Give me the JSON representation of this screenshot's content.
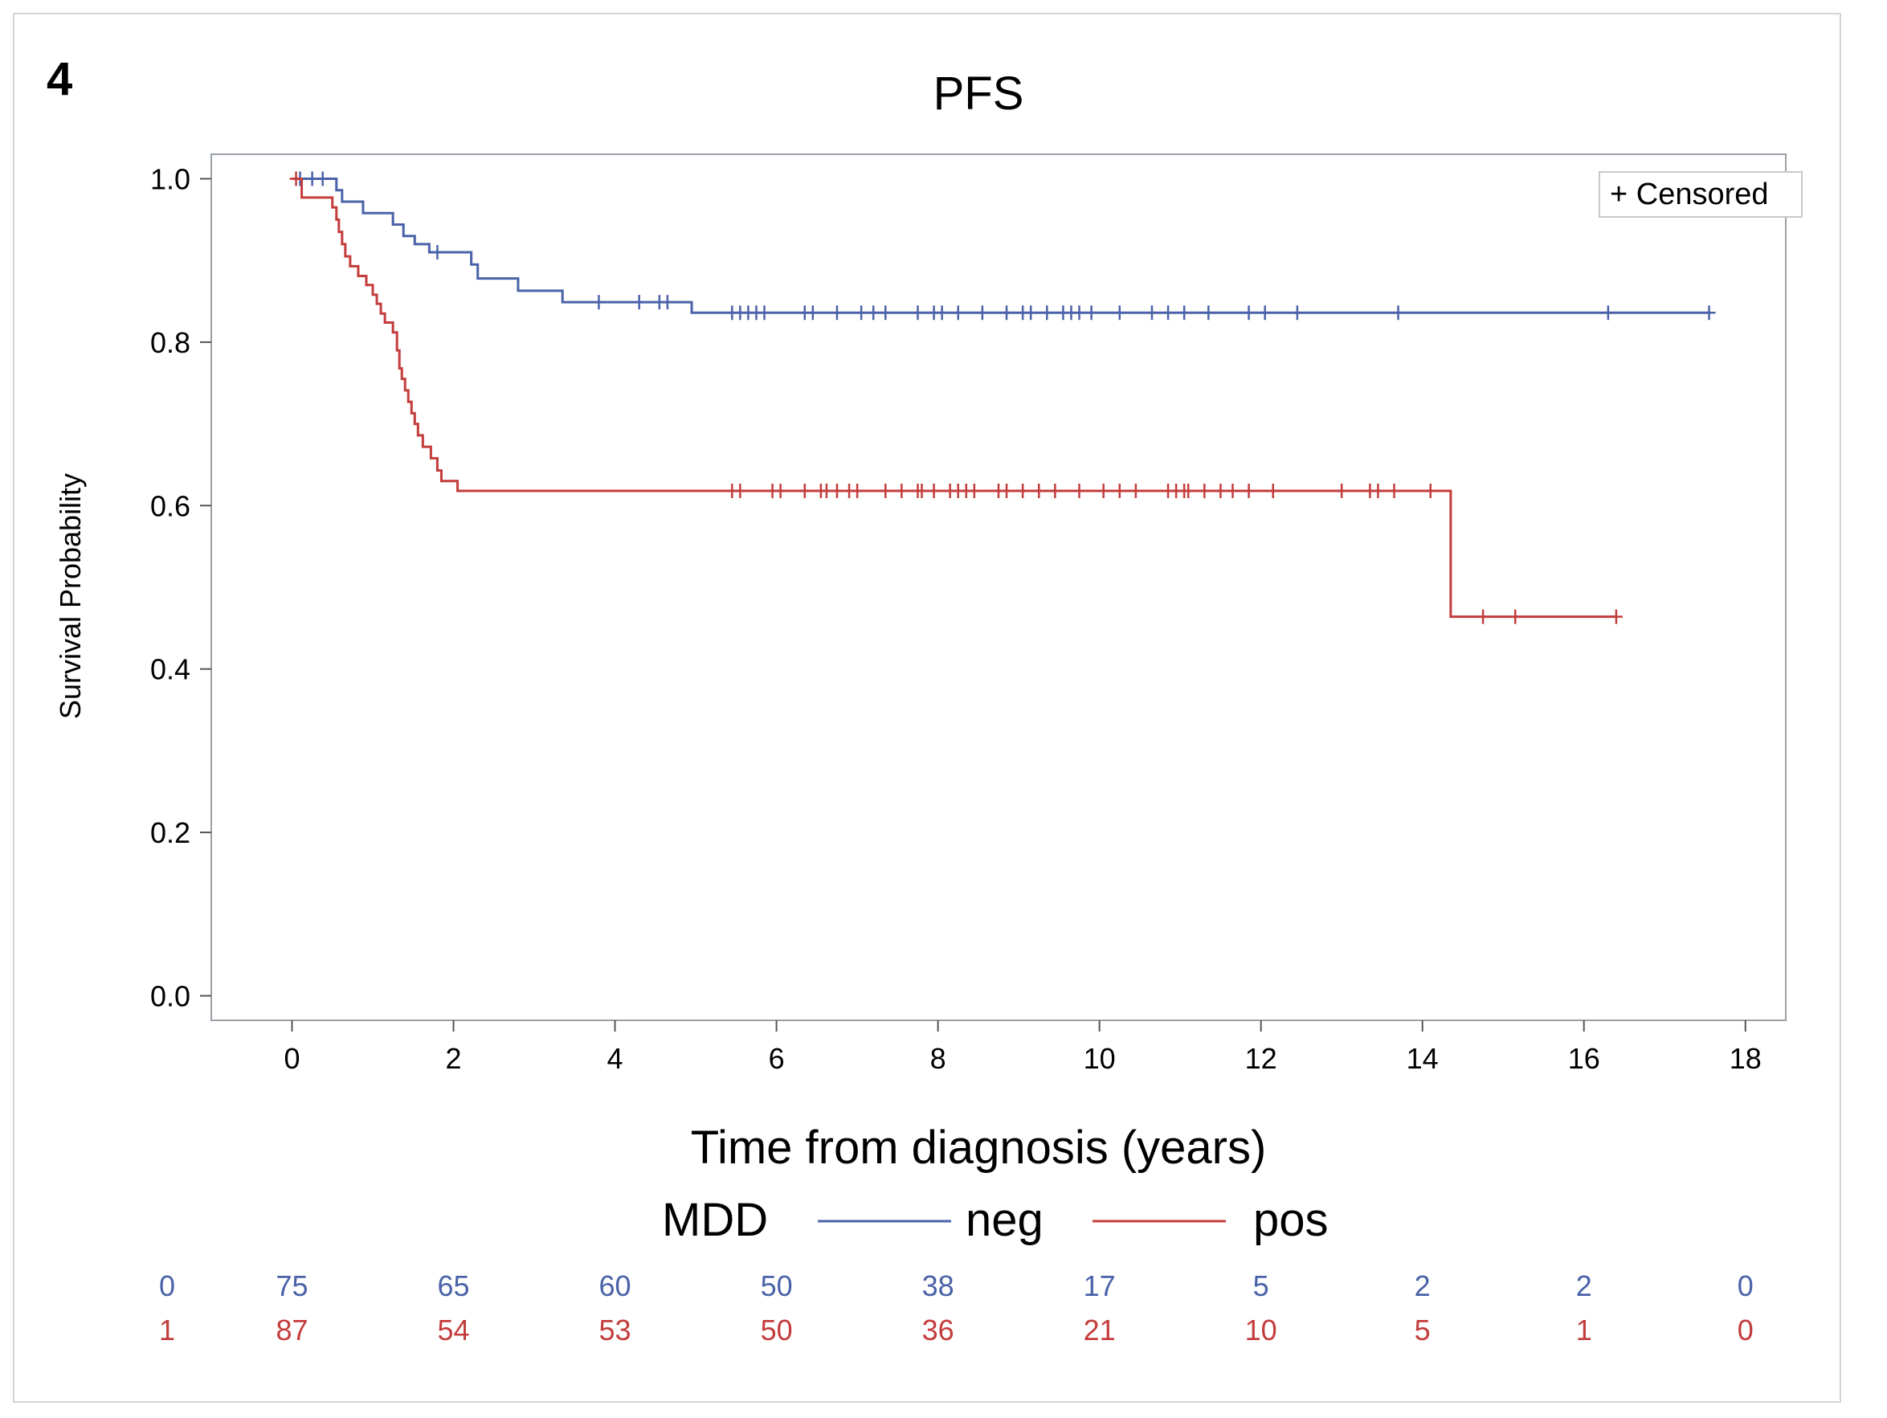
{
  "panel_label": "4",
  "chart_data": {
    "type": "line",
    "subtype": "kaplan-meier",
    "title": "PFS",
    "xlabel": "Time from diagnosis (years)",
    "ylabel": "Survival Probability",
    "xlim": [
      -1,
      18.5
    ],
    "ylim": [
      -0.03,
      1.03
    ],
    "xticks": [
      0,
      2,
      4,
      6,
      8,
      10,
      12,
      14,
      16,
      18
    ],
    "yticks": [
      0.0,
      0.2,
      0.4,
      0.6,
      0.8,
      1.0
    ],
    "xtick_labels": [
      "0",
      "2",
      "4",
      "6",
      "8",
      "10",
      "12",
      "14",
      "16",
      "18"
    ],
    "ytick_labels": [
      "0.0",
      "0.2",
      "0.4",
      "0.6",
      "0.8",
      "1.0"
    ],
    "grid": false,
    "inset_legend": {
      "text": "+ Censored",
      "position": "top-right"
    },
    "legend": {
      "title": "MDD",
      "position": "bottom"
    },
    "series": [
      {
        "name": "neg",
        "color": "#4a62a8",
        "steps": [
          [
            0,
            1.0
          ],
          [
            0.55,
            0.986
          ],
          [
            0.62,
            0.972
          ],
          [
            0.88,
            0.958
          ],
          [
            1.25,
            0.944
          ],
          [
            1.38,
            0.93
          ],
          [
            1.52,
            0.92
          ],
          [
            1.7,
            0.91
          ],
          [
            2.22,
            0.895
          ],
          [
            2.3,
            0.878
          ],
          [
            2.8,
            0.863
          ],
          [
            3.35,
            0.849
          ],
          [
            4.95,
            0.836
          ],
          [
            17.55,
            0.836
          ]
        ],
        "censored": [
          [
            0.1,
            1.0
          ],
          [
            0.25,
            1.0
          ],
          [
            0.38,
            1.0
          ],
          [
            1.8,
            0.91
          ],
          [
            3.8,
            0.849
          ],
          [
            4.3,
            0.849
          ],
          [
            4.55,
            0.849
          ],
          [
            4.65,
            0.849
          ],
          [
            5.45,
            0.836
          ],
          [
            5.55,
            0.836
          ],
          [
            5.65,
            0.836
          ],
          [
            5.75,
            0.836
          ],
          [
            5.85,
            0.836
          ],
          [
            6.35,
            0.836
          ],
          [
            6.45,
            0.836
          ],
          [
            6.75,
            0.836
          ],
          [
            7.05,
            0.836
          ],
          [
            7.2,
            0.836
          ],
          [
            7.35,
            0.836
          ],
          [
            7.75,
            0.836
          ],
          [
            7.95,
            0.836
          ],
          [
            8.05,
            0.836
          ],
          [
            8.25,
            0.836
          ],
          [
            8.55,
            0.836
          ],
          [
            8.85,
            0.836
          ],
          [
            9.05,
            0.836
          ],
          [
            9.15,
            0.836
          ],
          [
            9.35,
            0.836
          ],
          [
            9.55,
            0.836
          ],
          [
            9.65,
            0.836
          ],
          [
            9.75,
            0.836
          ],
          [
            9.9,
            0.836
          ],
          [
            10.25,
            0.836
          ],
          [
            10.65,
            0.836
          ],
          [
            10.85,
            0.836
          ],
          [
            11.05,
            0.836
          ],
          [
            11.35,
            0.836
          ],
          [
            11.85,
            0.836
          ],
          [
            12.05,
            0.836
          ],
          [
            12.45,
            0.836
          ],
          [
            13.7,
            0.836
          ],
          [
            16.3,
            0.836
          ],
          [
            17.55,
            0.836
          ]
        ]
      },
      {
        "name": "pos",
        "color": "#c43c3c",
        "steps": [
          [
            0,
            1.0
          ],
          [
            0.12,
            0.977
          ],
          [
            0.5,
            0.965
          ],
          [
            0.55,
            0.95
          ],
          [
            0.58,
            0.935
          ],
          [
            0.62,
            0.92
          ],
          [
            0.66,
            0.905
          ],
          [
            0.72,
            0.893
          ],
          [
            0.82,
            0.881
          ],
          [
            0.92,
            0.87
          ],
          [
            1.0,
            0.858
          ],
          [
            1.05,
            0.847
          ],
          [
            1.1,
            0.835
          ],
          [
            1.15,
            0.824
          ],
          [
            1.25,
            0.812
          ],
          [
            1.3,
            0.79
          ],
          [
            1.33,
            0.768
          ],
          [
            1.36,
            0.755
          ],
          [
            1.4,
            0.741
          ],
          [
            1.44,
            0.727
          ],
          [
            1.48,
            0.713
          ],
          [
            1.52,
            0.7
          ],
          [
            1.56,
            0.686
          ],
          [
            1.62,
            0.672
          ],
          [
            1.72,
            0.658
          ],
          [
            1.8,
            0.643
          ],
          [
            1.85,
            0.63
          ],
          [
            2.05,
            0.618
          ],
          [
            14.35,
            0.618
          ],
          [
            14.35,
            0.464
          ],
          [
            16.4,
            0.464
          ]
        ],
        "censored": [
          [
            0.05,
            1.0
          ],
          [
            5.45,
            0.618
          ],
          [
            5.55,
            0.618
          ],
          [
            5.95,
            0.618
          ],
          [
            6.05,
            0.618
          ],
          [
            6.35,
            0.618
          ],
          [
            6.55,
            0.618
          ],
          [
            6.62,
            0.618
          ],
          [
            6.75,
            0.618
          ],
          [
            6.9,
            0.618
          ],
          [
            7.0,
            0.618
          ],
          [
            7.35,
            0.618
          ],
          [
            7.55,
            0.618
          ],
          [
            7.75,
            0.618
          ],
          [
            7.8,
            0.618
          ],
          [
            7.95,
            0.618
          ],
          [
            8.15,
            0.618
          ],
          [
            8.25,
            0.618
          ],
          [
            8.35,
            0.618
          ],
          [
            8.45,
            0.618
          ],
          [
            8.75,
            0.618
          ],
          [
            8.85,
            0.618
          ],
          [
            9.05,
            0.618
          ],
          [
            9.25,
            0.618
          ],
          [
            9.45,
            0.618
          ],
          [
            9.75,
            0.618
          ],
          [
            10.05,
            0.618
          ],
          [
            10.25,
            0.618
          ],
          [
            10.45,
            0.618
          ],
          [
            10.85,
            0.618
          ],
          [
            10.95,
            0.618
          ],
          [
            11.05,
            0.618
          ],
          [
            11.1,
            0.618
          ],
          [
            11.3,
            0.618
          ],
          [
            11.5,
            0.618
          ],
          [
            11.65,
            0.618
          ],
          [
            11.85,
            0.618
          ],
          [
            12.15,
            0.618
          ],
          [
            13.0,
            0.618
          ],
          [
            13.35,
            0.618
          ],
          [
            13.45,
            0.618
          ],
          [
            13.65,
            0.618
          ],
          [
            14.1,
            0.618
          ],
          [
            14.75,
            0.464
          ],
          [
            15.15,
            0.464
          ],
          [
            16.4,
            0.464
          ]
        ]
      }
    ],
    "at_risk": {
      "times": [
        0,
        2,
        4,
        6,
        8,
        10,
        12,
        14,
        16,
        18
      ],
      "rows": [
        {
          "label": "0",
          "color": "#4a62a8",
          "counts": [
            "75",
            "65",
            "60",
            "50",
            "38",
            "17",
            "5",
            "2",
            "2",
            "0"
          ]
        },
        {
          "label": "1",
          "color": "#c43c3c",
          "counts": [
            "87",
            "54",
            "53",
            "50",
            "36",
            "21",
            "10",
            "5",
            "1",
            "0"
          ]
        }
      ]
    }
  }
}
